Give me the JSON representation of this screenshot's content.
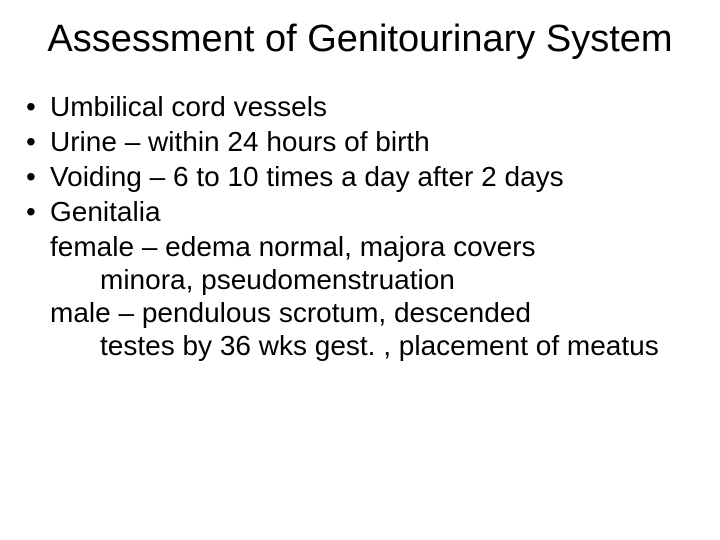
{
  "slide": {
    "title": "Assessment of Genitourinary System",
    "title_fontsize": 38,
    "body_fontsize": 28,
    "text_color": "#000000",
    "background_color": "#ffffff",
    "bullets": [
      {
        "text": "Umbilical cord vessels"
      },
      {
        "text": "Urine – within 24 hours of birth"
      },
      {
        "text": "Voiding – 6 to 10 times a day after 2 days"
      },
      {
        "text": "Genitalia"
      }
    ],
    "sublines": [
      {
        "text": "female – edema normal, majora covers",
        "indent": 1
      },
      {
        "text": "minora, pseudomenstruation",
        "indent": 2
      },
      {
        "text": "male – pendulous scrotum, descended",
        "indent": 1
      },
      {
        "text": "testes by 36 wks gest. , placement of meatus",
        "indent": 2
      }
    ],
    "bullet_char": "•"
  }
}
